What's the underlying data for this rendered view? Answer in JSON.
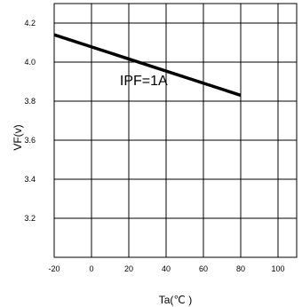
{
  "chart_data": {
    "type": "line",
    "title": "",
    "xlabel": "Ta(℃ )",
    "ylabel": "VF(v)",
    "xlim": [
      -20,
      110
    ],
    "ylim": [
      3.0,
      4.3
    ],
    "x_ticks": [
      -20,
      0,
      20,
      40,
      60,
      80,
      100
    ],
    "y_ticks": [
      3.2,
      3.4,
      3.6,
      3.8,
      4.0,
      4.2
    ],
    "x_tick_labels": [
      "-20",
      "0",
      "20",
      "40",
      "60",
      "80",
      "100"
    ],
    "y_tick_labels": [
      "3.2",
      "3.4",
      "3.6",
      "3.8",
      "4.0",
      "4.2"
    ],
    "grid": true,
    "series": [
      {
        "x": [
          -20,
          80
        ],
        "y": [
          4.14,
          3.83
        ],
        "color": "#000000"
      }
    ],
    "annotations": [
      {
        "text": "IPF=1A",
        "x": 28,
        "y": 3.91
      }
    ]
  }
}
